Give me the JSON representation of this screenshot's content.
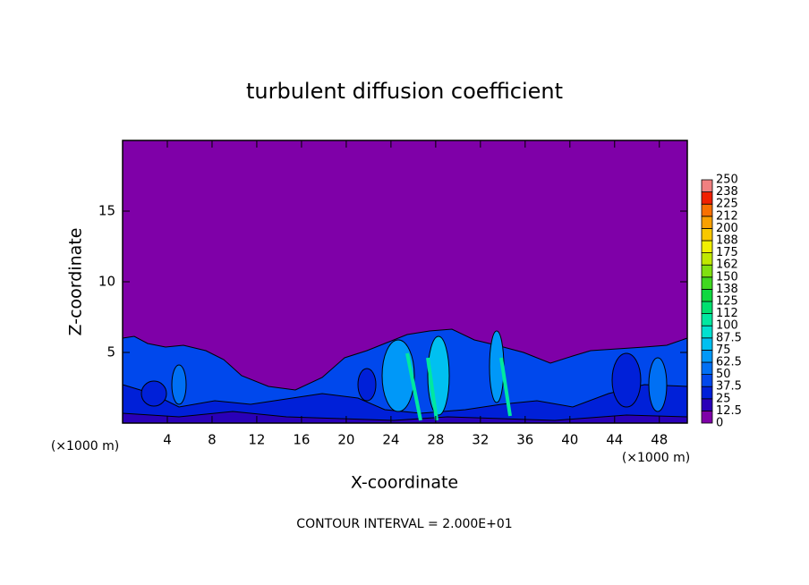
{
  "chart_data": {
    "type": "contour",
    "title": "turbulent diffusion coefficient",
    "x_label": "X-coordinate",
    "y_label": "Z-coordinate",
    "x_unit": "(×1000 m)",
    "xlim": [
      0,
      50.5
    ],
    "xticks": [
      4,
      8,
      12,
      16,
      20,
      24,
      28,
      32,
      36,
      40,
      44,
      48
    ],
    "ylim": [
      0,
      20
    ],
    "yticks": [
      5,
      10,
      15
    ],
    "colorbar": {
      "levels": [
        0,
        12.5,
        25,
        37.5,
        50,
        62.5,
        75,
        87.5,
        100,
        112,
        125,
        138,
        150,
        162,
        175,
        188,
        200,
        212,
        225,
        238,
        250
      ],
      "colors": [
        "#7f00a8",
        "#2a00b8",
        "#0020d8",
        "#0048ec",
        "#0070f4",
        "#0098f8",
        "#00c0f0",
        "#00e0d0",
        "#00e8a0",
        "#00e070",
        "#10d840",
        "#40d820",
        "#80e010",
        "#c0e800",
        "#f0f000",
        "#f8c800",
        "#f8a000",
        "#f87000",
        "#f02000",
        "#f08080"
      ]
    },
    "footnote": "CONTOUR INTERVAL = 2.000E+01"
  }
}
